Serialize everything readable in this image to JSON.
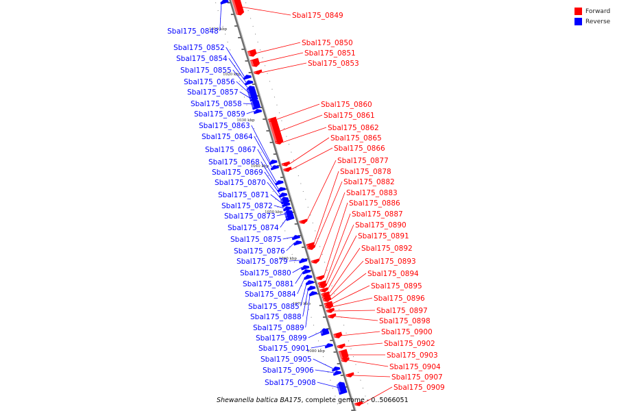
{
  "legend": {
    "forward": {
      "label": "Forward",
      "color": "#ff0000"
    },
    "reverse": {
      "label": "Reverse",
      "color": "#0000ff"
    }
  },
  "caption": {
    "organism": "Shewanella baltica BA175",
    "rest": ", complete genome - 0..5066051"
  },
  "ticks": [
    "1010 kbp",
    "1020 kbp",
    "1030 kbp",
    "1040 kbp",
    "1050 kbp",
    "1060 kbp",
    "1070 kbp",
    "1080 kbp"
  ],
  "genes": [
    {
      "name": "Sbal175_0848",
      "strand": "reverse"
    },
    {
      "name": "Sbal175_0849",
      "strand": "forward"
    },
    {
      "name": "Sbal175_0850",
      "strand": "forward"
    },
    {
      "name": "Sbal175_0851",
      "strand": "forward"
    },
    {
      "name": "Sbal175_0852",
      "strand": "reverse"
    },
    {
      "name": "Sbal175_0853",
      "strand": "forward"
    },
    {
      "name": "Sbal175_0854",
      "strand": "reverse"
    },
    {
      "name": "Sbal175_0855",
      "strand": "reverse"
    },
    {
      "name": "Sbal175_0856",
      "strand": "reverse"
    },
    {
      "name": "Sbal175_0857",
      "strand": "reverse"
    },
    {
      "name": "Sbal175_0858",
      "strand": "reverse"
    },
    {
      "name": "Sbal175_0859",
      "strand": "reverse"
    },
    {
      "name": "Sbal175_0860",
      "strand": "forward"
    },
    {
      "name": "Sbal175_0861",
      "strand": "forward"
    },
    {
      "name": "Sbal175_0862",
      "strand": "forward"
    },
    {
      "name": "Sbal175_0863",
      "strand": "reverse"
    },
    {
      "name": "Sbal175_0864",
      "strand": "reverse"
    },
    {
      "name": "Sbal175_0865",
      "strand": "forward"
    },
    {
      "name": "Sbal175_0866",
      "strand": "forward"
    },
    {
      "name": "Sbal175_0867",
      "strand": "reverse"
    },
    {
      "name": "Sbal175_0868",
      "strand": "reverse"
    },
    {
      "name": "Sbal175_0869",
      "strand": "reverse"
    },
    {
      "name": "Sbal175_0870",
      "strand": "reverse"
    },
    {
      "name": "Sbal175_0871",
      "strand": "reverse"
    },
    {
      "name": "Sbal175_0872",
      "strand": "reverse"
    },
    {
      "name": "Sbal175_0873",
      "strand": "reverse"
    },
    {
      "name": "Sbal175_0874",
      "strand": "reverse"
    },
    {
      "name": "Sbal175_0875",
      "strand": "reverse"
    },
    {
      "name": "Sbal175_0876",
      "strand": "reverse"
    },
    {
      "name": "Sbal175_0877",
      "strand": "forward"
    },
    {
      "name": "Sbal175_0878",
      "strand": "forward"
    },
    {
      "name": "Sbal175_0879",
      "strand": "reverse"
    },
    {
      "name": "Sbal175_0880",
      "strand": "reverse"
    },
    {
      "name": "Sbal175_0881",
      "strand": "reverse"
    },
    {
      "name": "Sbal175_0882",
      "strand": "forward"
    },
    {
      "name": "Sbal175_0883",
      "strand": "forward"
    },
    {
      "name": "Sbal175_0884",
      "strand": "reverse"
    },
    {
      "name": "Sbal175_0885",
      "strand": "reverse"
    },
    {
      "name": "Sbal175_0886",
      "strand": "forward"
    },
    {
      "name": "Sbal175_0887",
      "strand": "forward"
    },
    {
      "name": "Sbal175_0888",
      "strand": "reverse"
    },
    {
      "name": "Sbal175_0889",
      "strand": "reverse"
    },
    {
      "name": "Sbal175_0890",
      "strand": "forward"
    },
    {
      "name": "Sbal175_0891",
      "strand": "forward"
    },
    {
      "name": "Sbal175_0892",
      "strand": "forward"
    },
    {
      "name": "Sbal175_0893",
      "strand": "forward"
    },
    {
      "name": "Sbal175_0894",
      "strand": "forward"
    },
    {
      "name": "Sbal175_0895",
      "strand": "forward"
    },
    {
      "name": "Sbal175_0896",
      "strand": "forward"
    },
    {
      "name": "Sbal175_0897",
      "strand": "forward"
    },
    {
      "name": "Sbal175_0898",
      "strand": "forward"
    },
    {
      "name": "Sbal175_0899",
      "strand": "reverse"
    },
    {
      "name": "Sbal175_0900",
      "strand": "forward"
    },
    {
      "name": "Sbal175_0901",
      "strand": "reverse"
    },
    {
      "name": "Sbal175_0902",
      "strand": "forward"
    },
    {
      "name": "Sbal175_0903",
      "strand": "forward"
    },
    {
      "name": "Sbal175_0904",
      "strand": "forward"
    },
    {
      "name": "Sbal175_0905",
      "strand": "reverse"
    },
    {
      "name": "Sbal175_0906",
      "strand": "reverse"
    },
    {
      "name": "Sbal175_0907",
      "strand": "forward"
    },
    {
      "name": "Sbal175_0908",
      "strand": "reverse"
    },
    {
      "name": "Sbal175_0909",
      "strand": "forward"
    }
  ]
}
